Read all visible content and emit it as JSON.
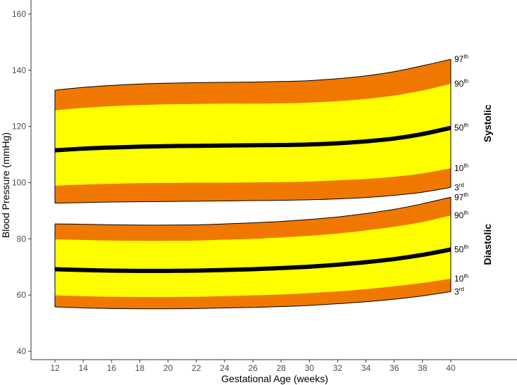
{
  "chart_data": {
    "type": "area",
    "title": "",
    "xlabel": "Gestational Age (weeks)",
    "ylabel": "Blood Pressure (mmHg)",
    "xlim": [
      12,
      40
    ],
    "ylim": [
      37,
      165
    ],
    "x_ticks": [
      12,
      14,
      16,
      18,
      20,
      22,
      24,
      26,
      28,
      30,
      32,
      34,
      36,
      38,
      40
    ],
    "y_ticks": [
      40,
      60,
      80,
      100,
      120,
      140,
      160
    ],
    "grid": false,
    "colors": {
      "outer_band": "#F07800",
      "inner_band": "#FFFF00",
      "median_line": "#000000",
      "edge_line": "#000000"
    },
    "x": [
      12,
      14,
      16,
      18,
      20,
      22,
      24,
      26,
      28,
      30,
      32,
      34,
      36,
      38,
      40
    ],
    "groups": [
      {
        "name": "Systolic",
        "series": [
          {
            "name": "3rd",
            "num": "3",
            "sup": "rd",
            "values": [
              92.7,
              92.9,
              93.1,
              93.2,
              93.3,
              93.4,
              93.5,
              93.6,
              93.7,
              93.9,
              94.2,
              94.7,
              95.5,
              96.6,
              98.3
            ]
          },
          {
            "name": "10th",
            "num": "10",
            "sup": "th",
            "values": [
              98.9,
              99.3,
              99.6,
              99.8,
              99.9,
              100.0,
              100.0,
              100.1,
              100.2,
              100.4,
              100.8,
              101.3,
              102.1,
              103.3,
              105.1
            ]
          },
          {
            "name": "50th",
            "num": "50",
            "sup": "th",
            "values": [
              111.5,
              112.1,
              112.5,
              112.8,
              113.0,
              113.1,
              113.2,
              113.3,
              113.4,
              113.6,
              114.0,
              114.7,
              115.7,
              117.3,
              119.5
            ]
          },
          {
            "name": "90th",
            "num": "90",
            "sup": "th",
            "values": [
              125.7,
              126.6,
              127.2,
              127.6,
              127.9,
              128.0,
              128.1,
              128.1,
              128.2,
              128.5,
              129.0,
              129.8,
              131.0,
              132.8,
              135.2
            ]
          },
          {
            "name": "97th",
            "num": "97",
            "sup": "th",
            "values": [
              132.9,
              133.9,
              134.6,
              135.1,
              135.4,
              135.6,
              135.7,
              135.8,
              136.0,
              136.3,
              137.0,
              138.0,
              139.5,
              141.6,
              143.9
            ]
          }
        ]
      },
      {
        "name": "Diastolic",
        "series": [
          {
            "name": "3rd",
            "num": "3",
            "sup": "rd",
            "values": [
              55.8,
              55.4,
              55.2,
              55.1,
              55.1,
              55.2,
              55.4,
              55.6,
              55.9,
              56.3,
              56.9,
              57.6,
              58.5,
              59.7,
              61.2
            ]
          },
          {
            "name": "10th",
            "num": "10",
            "sup": "th",
            "values": [
              59.9,
              59.6,
              59.4,
              59.3,
              59.3,
              59.4,
              59.6,
              59.9,
              60.2,
              60.7,
              61.3,
              62.1,
              63.1,
              64.3,
              65.8
            ]
          },
          {
            "name": "50th",
            "num": "50",
            "sup": "th",
            "values": [
              69.2,
              68.9,
              68.7,
              68.6,
              68.6,
              68.7,
              68.9,
              69.2,
              69.6,
              70.1,
              70.8,
              71.7,
              72.8,
              74.3,
              76.2
            ]
          },
          {
            "name": "90th",
            "num": "90",
            "sup": "th",
            "values": [
              79.8,
              79.6,
              79.4,
              79.3,
              79.3,
              79.4,
              79.7,
              80.0,
              80.5,
              81.1,
              81.9,
              83.0,
              84.3,
              86.0,
              88.3
            ]
          },
          {
            "name": "97th",
            "num": "97",
            "sup": "th",
            "values": [
              85.3,
              85.2,
              85.0,
              84.9,
              84.9,
              85.0,
              85.3,
              85.7,
              86.2,
              86.9,
              87.8,
              89.0,
              90.5,
              92.5,
              94.8
            ]
          }
        ]
      }
    ]
  }
}
